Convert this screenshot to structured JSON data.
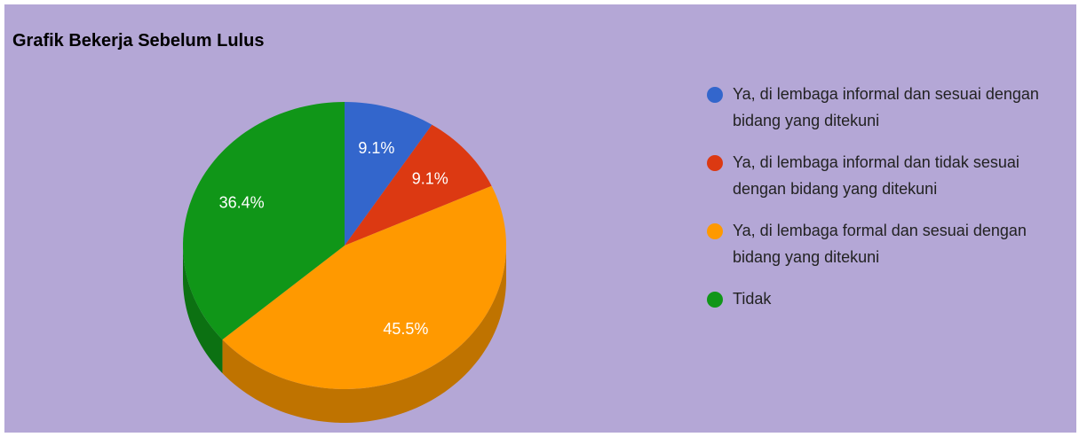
{
  "chart_data": {
    "type": "pie",
    "title": "Grafik Bekerja Sebelum Lulus",
    "series": [
      {
        "name": "Ya, di lembaga informal dan sesuai dengan bidang yang ditekuni",
        "color": "#3366cc"
      },
      {
        "name": "Ya, di lembaga informal dan tidak sesuai dengan bidang yang ditekuni",
        "color": "#dc3912"
      },
      {
        "name": "Ya, di lembaga formal dan sesuai dengan bidang yang ditekuni",
        "color": "#ff9900"
      },
      {
        "name": "Tidak",
        "color": "#109618"
      }
    ],
    "values": [
      9.1,
      9.1,
      45.5,
      36.4
    ],
    "value_labels": [
      "9.1%",
      "9.1%",
      "45.5%",
      "36.4%"
    ],
    "legend": "right",
    "background": "#b4a7d6"
  }
}
